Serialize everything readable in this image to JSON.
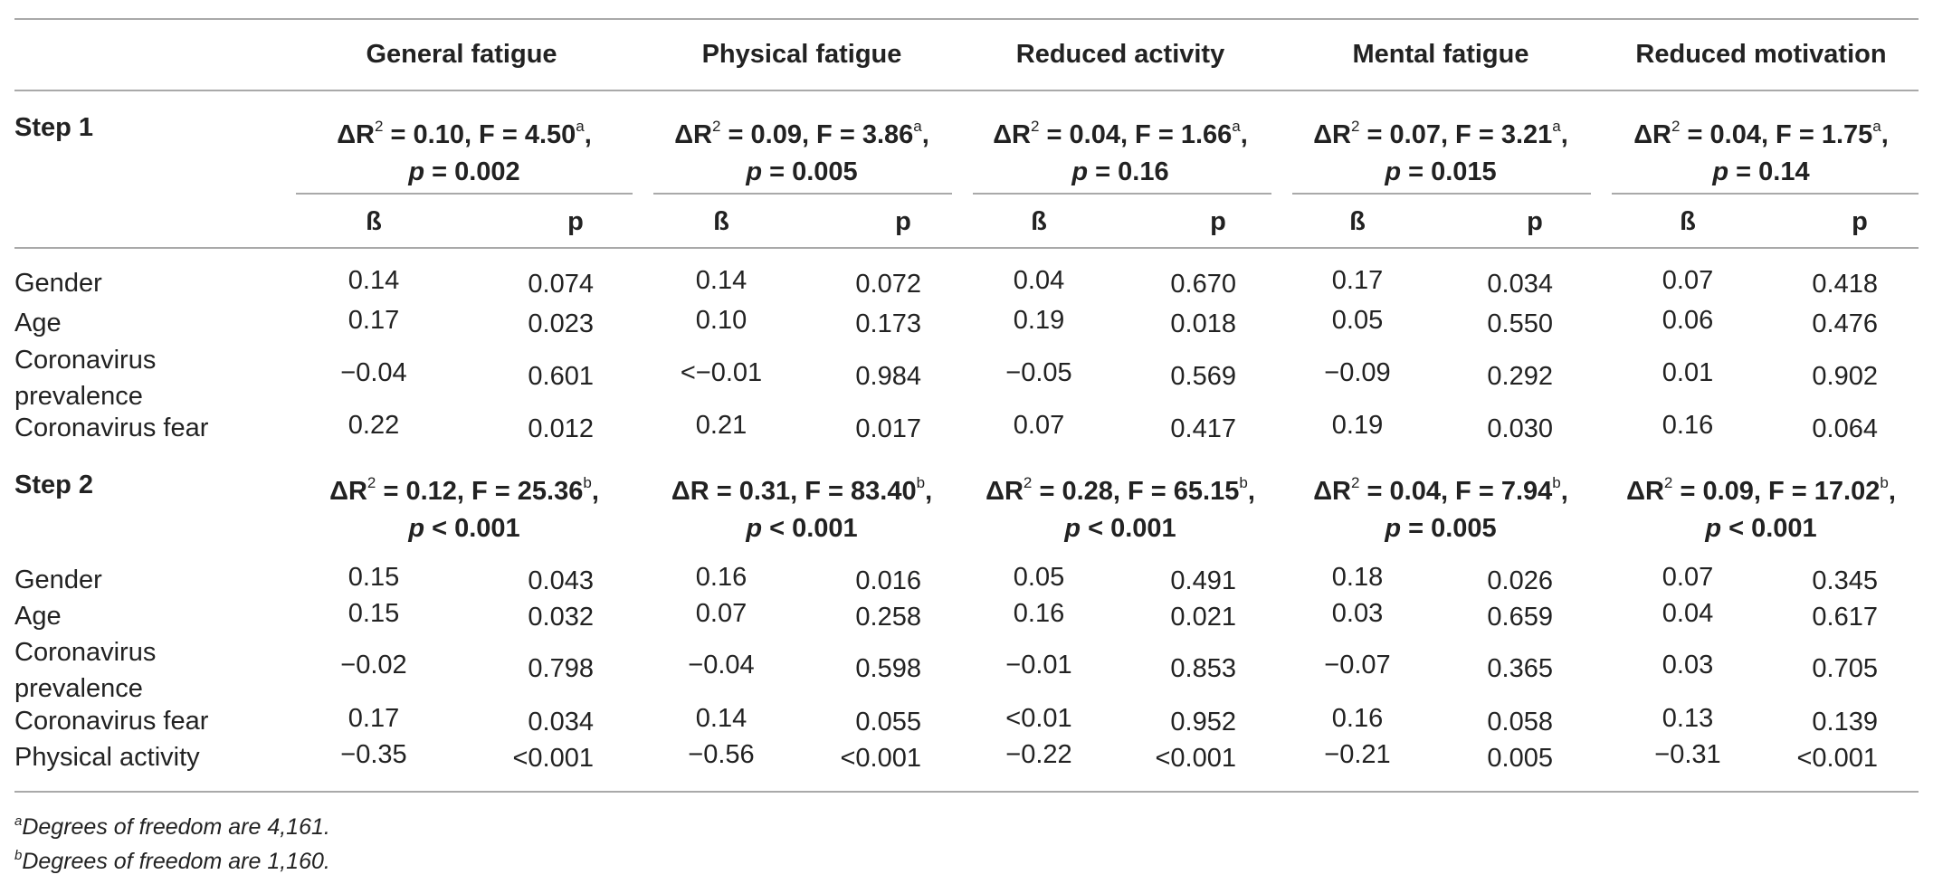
{
  "headers": [
    "General fatigue",
    "Physical fatigue",
    "Reduced activity",
    "Mental fatigue",
    "Reduced motivation"
  ],
  "beta_label": "ß",
  "p_label": "p",
  "steps": [
    {
      "label": "Step 1",
      "stats": [
        {
          "dr": "ΔR",
          "r_sup": "2",
          "rest": " = 0.10, F = 4.50",
          "sup": "a",
          "p_label": "p",
          "p_rest": " = 0.002"
        },
        {
          "dr": "ΔR",
          "r_sup": "2",
          "rest": " = 0.09, F = 3.86",
          "sup": "a",
          "p_label": "p",
          "p_rest": " = 0.005"
        },
        {
          "dr": "ΔR",
          "r_sup": "2",
          "rest": " = 0.04, F = 1.66",
          "sup": "a",
          "p_label": "p",
          "p_rest": " = 0.16"
        },
        {
          "dr": "ΔR",
          "r_sup": "2",
          "rest": " = 0.07, F = 3.21",
          "sup": "a",
          "p_label": "p",
          "p_rest": " = 0.015"
        },
        {
          "dr": "ΔR",
          "r_sup": "2",
          "rest": " = 0.04, F = 1.75",
          "sup": "a",
          "p_label": "p",
          "p_rest": " = 0.14"
        }
      ],
      "rows": [
        {
          "label": "Gender",
          "cells": [
            "0.14",
            "0.074",
            "0.14",
            "0.072",
            "0.04",
            "0.670",
            "0.17",
            "0.034",
            "0.07",
            "0.418"
          ]
        },
        {
          "label": "Age",
          "cells": [
            "0.17",
            "0.023",
            "0.10",
            "0.173",
            "0.19",
            "0.018",
            "0.05",
            "0.550",
            "0.06",
            "0.476"
          ]
        },
        {
          "label": "Coronavirus prevalence",
          "label1": "Coronavirus",
          "label2": "prevalence",
          "cells": [
            "−0.04",
            "0.601",
            "<−0.01",
            "0.984",
            "−0.05",
            "0.569",
            "−0.09",
            "0.292",
            "0.01",
            "0.902"
          ]
        },
        {
          "label": "Coronavirus fear",
          "cells": [
            "0.22",
            "0.012",
            "0.21",
            "0.017",
            "0.07",
            "0.417",
            "0.19",
            "0.030",
            "0.16",
            "0.064"
          ]
        }
      ]
    },
    {
      "label": "Step 2",
      "stats": [
        {
          "dr": "ΔR",
          "r_sup": "2",
          "rest": " = 0.12, F = 25.36",
          "sup": "b",
          "p_label": "p",
          "p_rest": " < 0.001"
        },
        {
          "dr": "ΔR",
          "r_sup": "",
          "rest": " = 0.31, F = 83.40",
          "sup": "b",
          "p_label": "p",
          "p_rest": " < 0.001"
        },
        {
          "dr": "ΔR",
          "r_sup": "2",
          "rest": " = 0.28, F = 65.15",
          "sup": "b",
          "p_label": "p",
          "p_rest": " < 0.001"
        },
        {
          "dr": "ΔR",
          "r_sup": "2",
          "rest": " = 0.04, F = 7.94",
          "sup": "b",
          "p_label": "p",
          "p_rest": " = 0.005"
        },
        {
          "dr": "ΔR",
          "r_sup": "2",
          "rest": " = 0.09, F = 17.02",
          "sup": "b",
          "p_label": "p",
          "p_rest": " < 0.001"
        }
      ],
      "rows": [
        {
          "label": "Gender",
          "cells": [
            "0.15",
            "0.043",
            "0.16",
            "0.016",
            "0.05",
            "0.491",
            "0.18",
            "0.026",
            "0.07",
            "0.345"
          ]
        },
        {
          "label": "Age",
          "cells": [
            "0.15",
            "0.032",
            "0.07",
            "0.258",
            "0.16",
            "0.021",
            "0.03",
            "0.659",
            "0.04",
            "0.617"
          ]
        },
        {
          "label": "Coronavirus prevalence",
          "label1": "Coronavirus",
          "label2": "prevalence",
          "cells": [
            "−0.02",
            "0.798",
            "−0.04",
            "0.598",
            "−0.01",
            "0.853",
            "−0.07",
            "0.365",
            "0.03",
            "0.705"
          ]
        },
        {
          "label": "Coronavirus fear",
          "cells": [
            "0.17",
            "0.034",
            "0.14",
            "0.055",
            "<0.01",
            "0.952",
            "0.16",
            "0.058",
            "0.13",
            "0.139"
          ]
        },
        {
          "label": "Physical activity",
          "cells": [
            "−0.35",
            "<0.001",
            "−0.56",
            "<0.001",
            "−0.22",
            "<0.001",
            "−0.21",
            "0.005",
            "−0.31",
            "<0.001"
          ]
        }
      ]
    }
  ],
  "footnotes": [
    {
      "sup": "a",
      "text": "Degrees of freedom are 4,161."
    },
    {
      "sup": "b",
      "text": "Degrees of freedom are 1,160."
    }
  ]
}
